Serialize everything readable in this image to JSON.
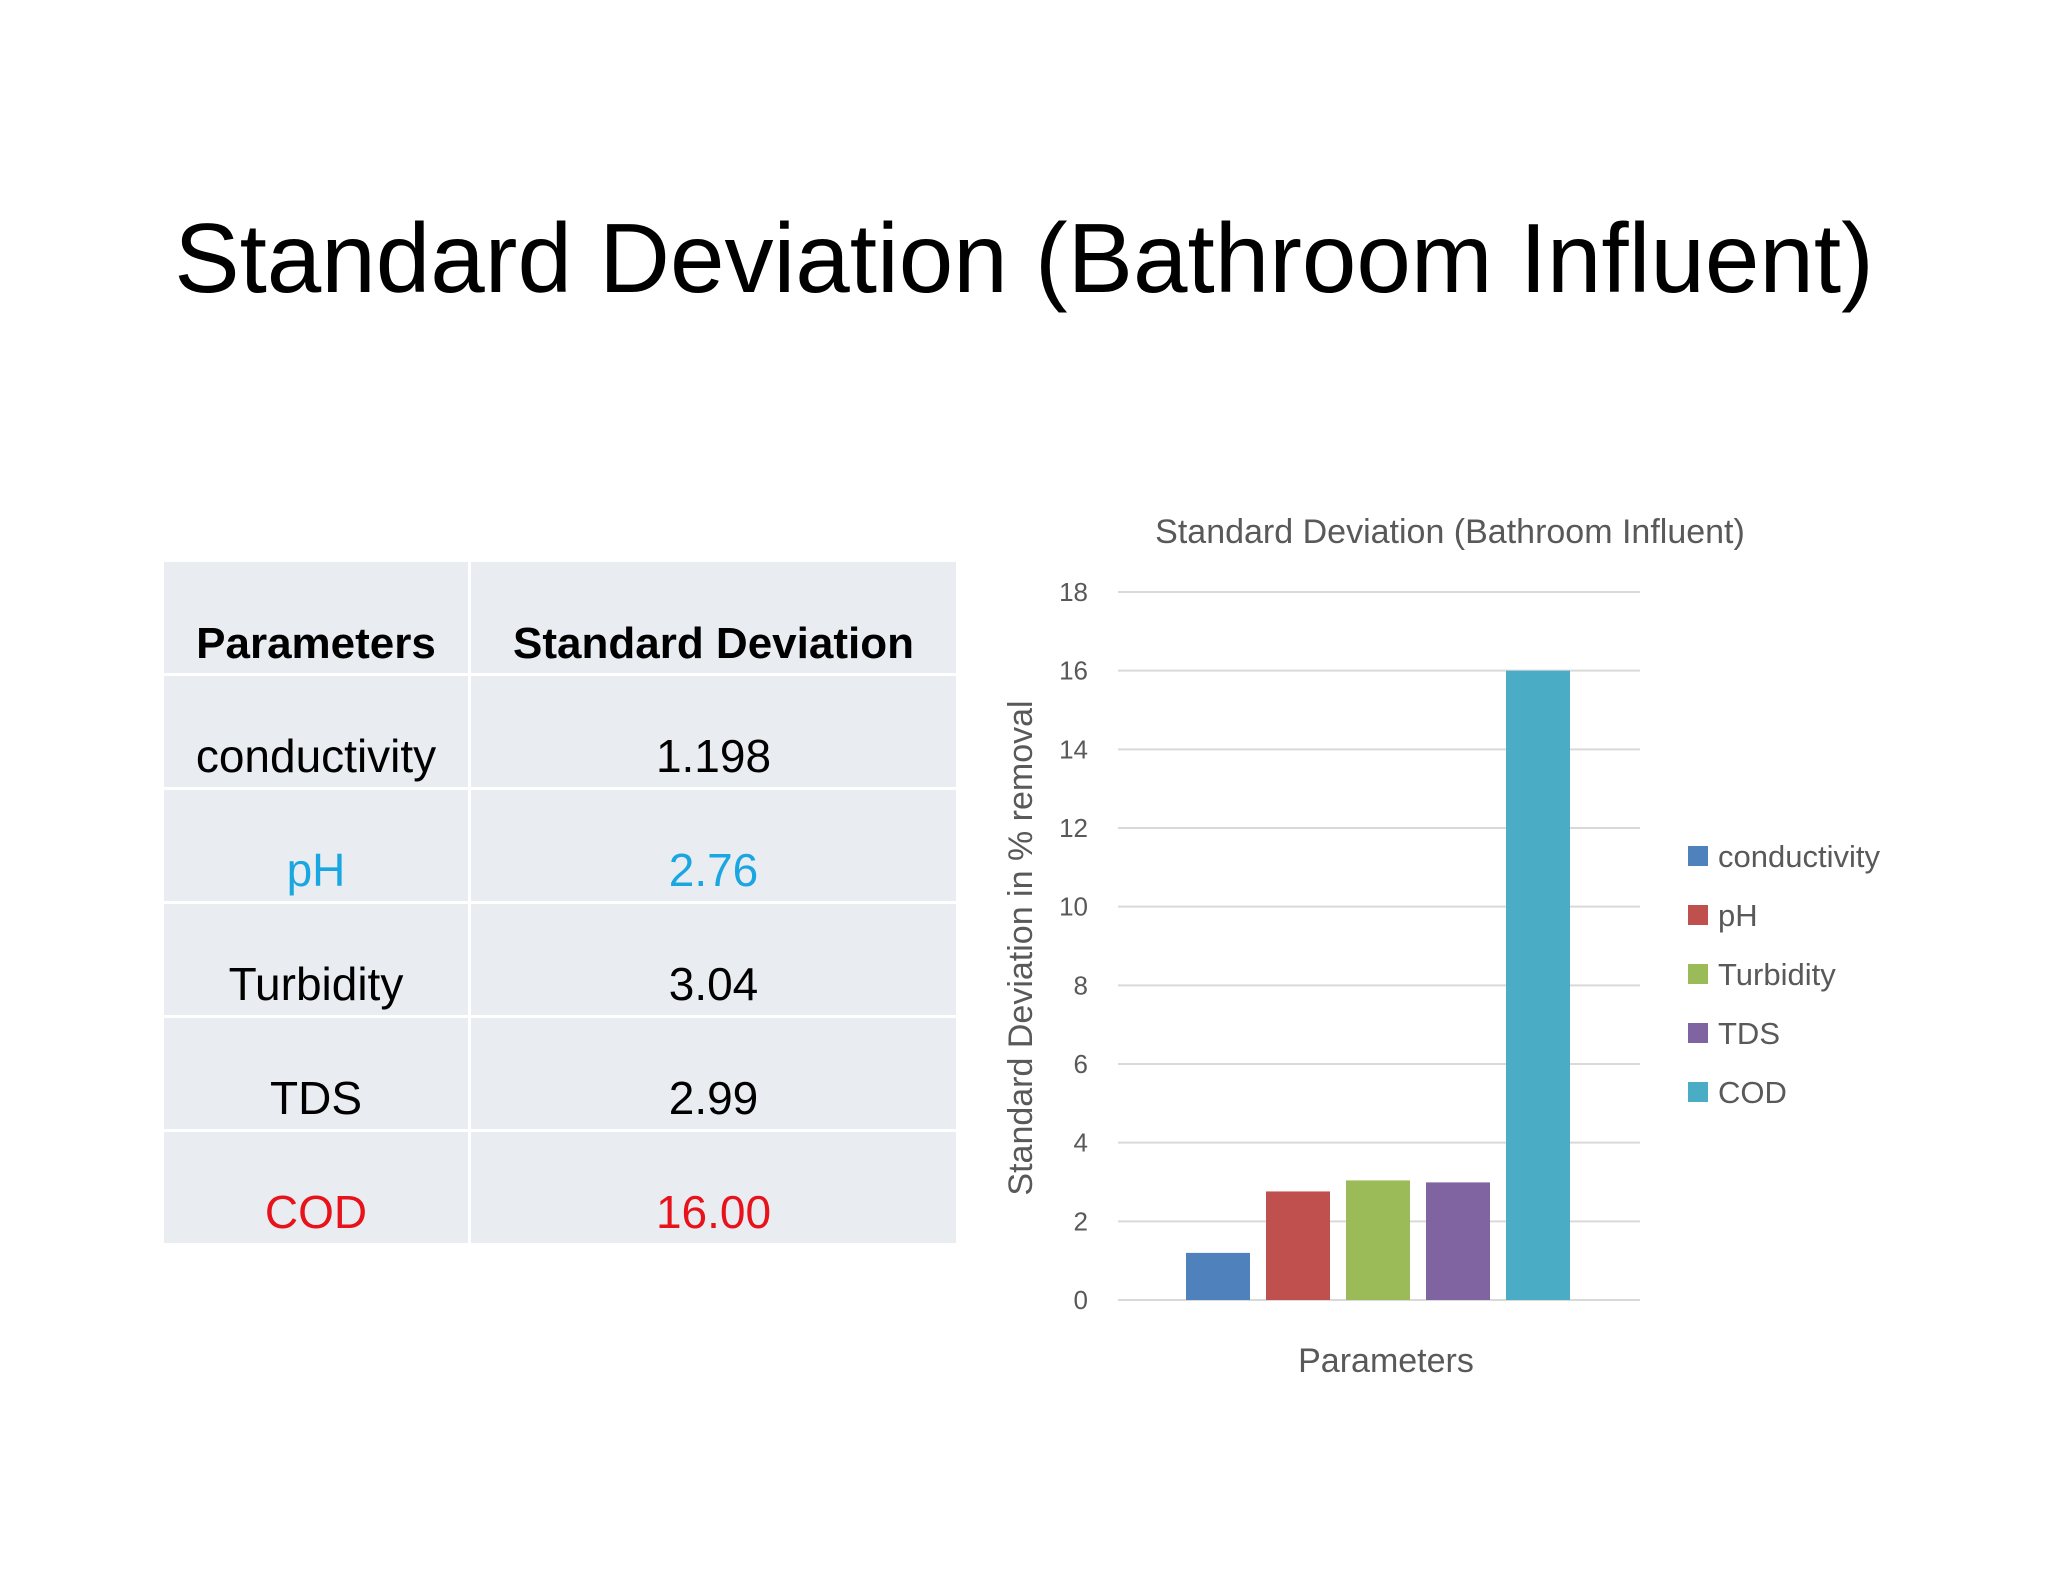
{
  "slide": {
    "title": "Standard Deviation (Bathroom Influent)"
  },
  "table": {
    "headers": [
      "Parameters",
      "Standard Deviation"
    ],
    "rows": [
      {
        "parameter": "conductivity",
        "value": "1.198"
      },
      {
        "parameter": "pH",
        "value": "2.76"
      },
      {
        "parameter": "Turbidity",
        "value": "3.04"
      },
      {
        "parameter": "TDS",
        "value": "2.99"
      },
      {
        "parameter": "COD",
        "value": "16.00"
      }
    ],
    "highlight_colors": {
      "pH": "#1aa6e0",
      "COD": "#e8121b"
    }
  },
  "chart_data": {
    "type": "bar",
    "title": "Standard Deviation (Bathroom Influent)",
    "xlabel": "Parameters",
    "ylabel": "Standard Deviation in % removal",
    "ylim": [
      0,
      18
    ],
    "yticks": [
      0,
      2,
      4,
      6,
      8,
      10,
      12,
      14,
      16,
      18
    ],
    "grid": true,
    "legend_position": "right",
    "series": [
      {
        "name": "conductivity",
        "values": [
          1.198
        ],
        "color": "#4f81bd"
      },
      {
        "name": "pH",
        "values": [
          2.76
        ],
        "color": "#c0504d"
      },
      {
        "name": "Turbidity",
        "values": [
          3.04
        ],
        "color": "#9bbb59"
      },
      {
        "name": "TDS",
        "values": [
          2.99
        ],
        "color": "#8064a2"
      },
      {
        "name": "COD",
        "values": [
          16.0
        ],
        "color": "#4bacc6"
      }
    ]
  }
}
